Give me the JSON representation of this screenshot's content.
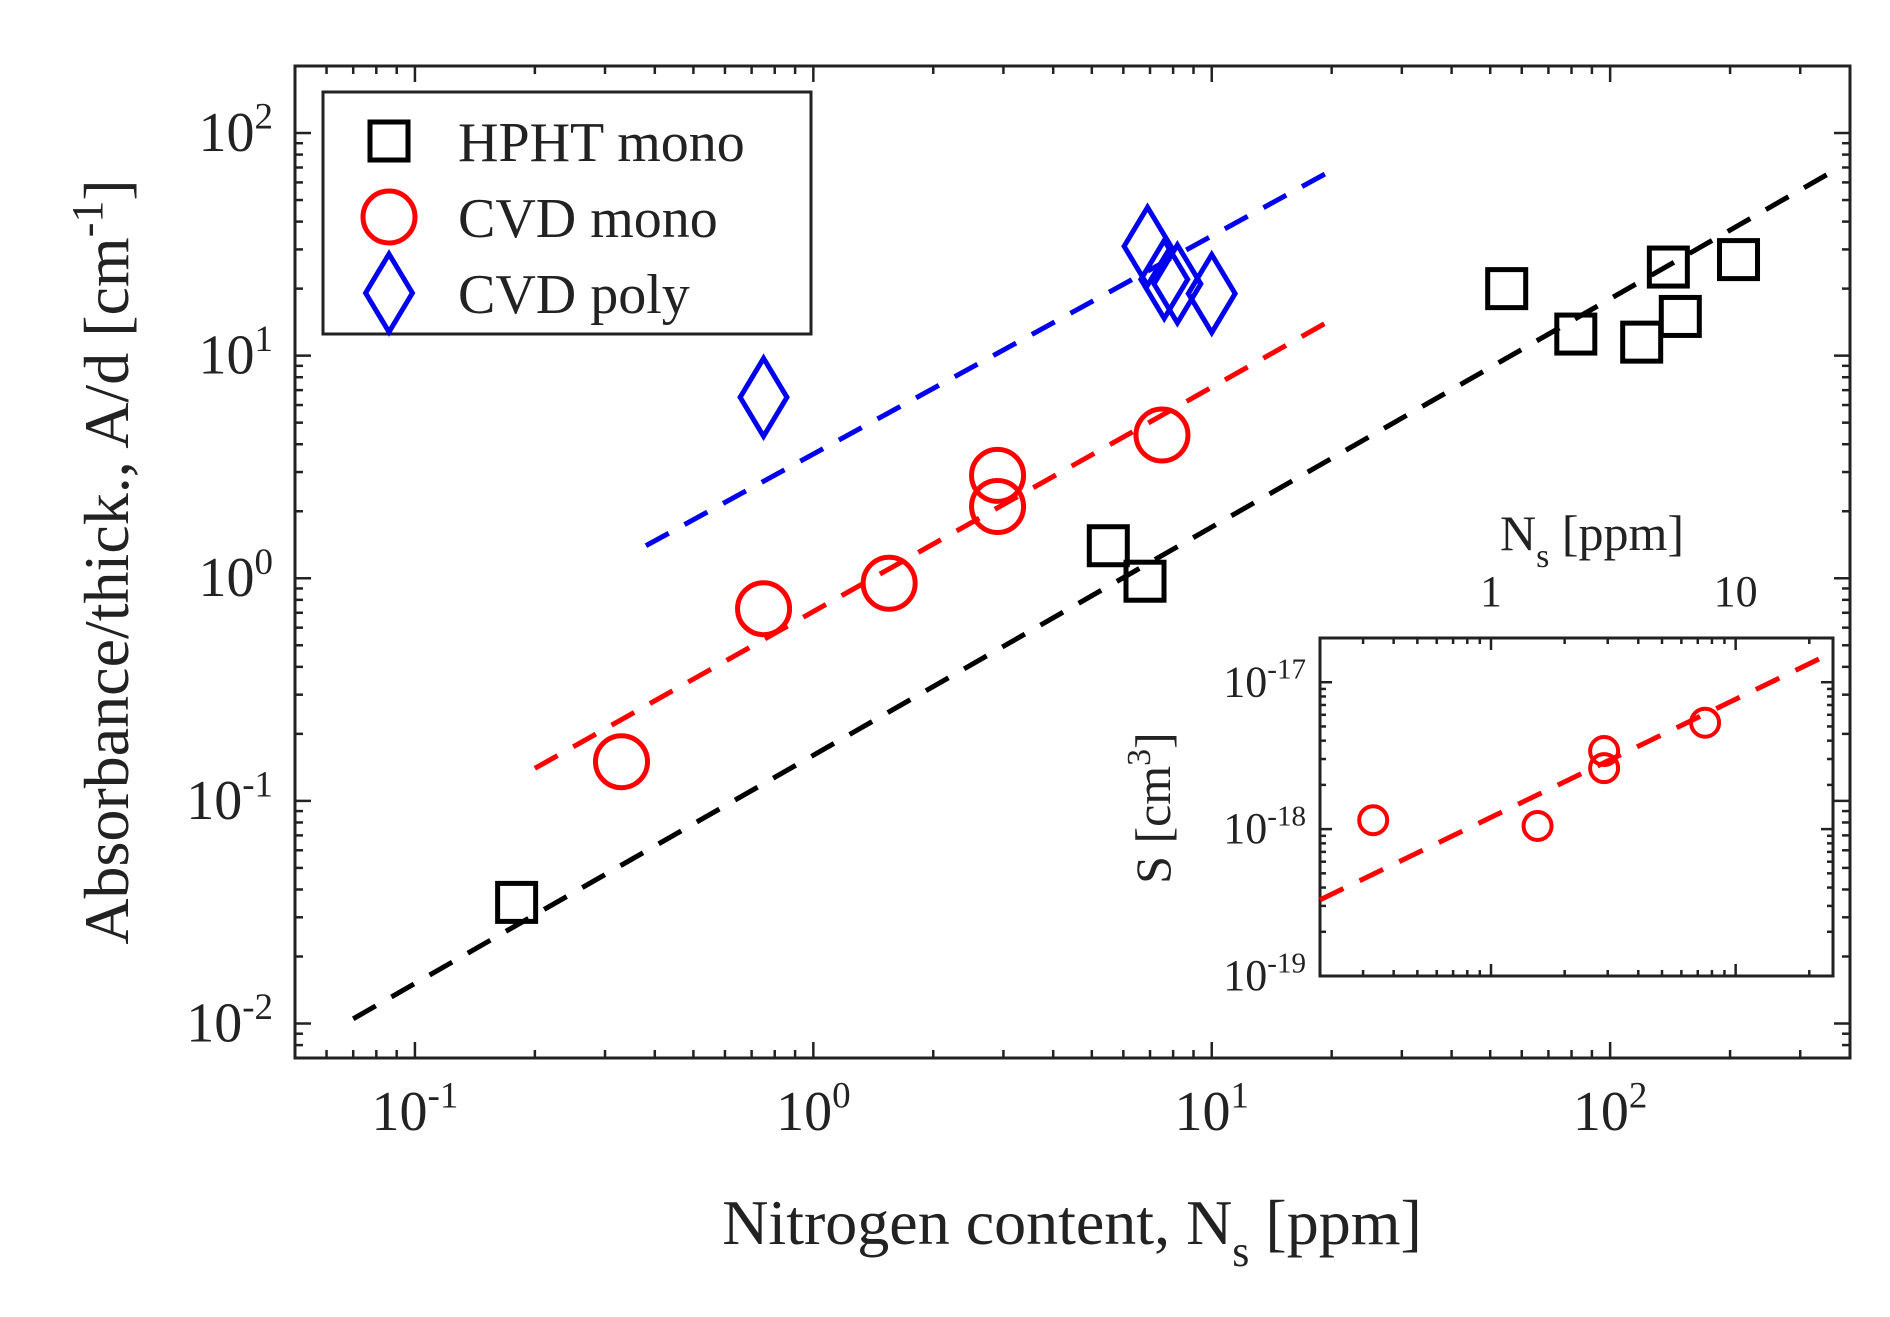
{
  "chart_data": [
    {
      "type": "scatter",
      "xlabel": "Nitrogen content, N",
      "xlabel_sub": "s",
      "xlabel_unit": " [ppm]",
      "ylabel": "Absorbance/thick., A/d [cm",
      "ylabel_sup": "-1",
      "ylabel_end": "]",
      "xscale": "log",
      "yscale": "log",
      "xlim": [
        0.05,
        400
      ],
      "ylim": [
        0.007,
        200
      ],
      "xticks": [
        {
          "value": 0.1,
          "base": "10",
          "exp": "-1"
        },
        {
          "value": 1,
          "base": "10",
          "exp": "0"
        },
        {
          "value": 10,
          "base": "10",
          "exp": "1"
        },
        {
          "value": 100,
          "base": "10",
          "exp": "2"
        }
      ],
      "yticks": [
        {
          "value": 0.01,
          "base": "10",
          "exp": "-2"
        },
        {
          "value": 0.1,
          "base": "10",
          "exp": "-1"
        },
        {
          "value": 1,
          "base": "10",
          "exp": "0"
        },
        {
          "value": 10,
          "base": "10",
          "exp": "1"
        },
        {
          "value": 100,
          "base": "10",
          "exp": "2"
        }
      ],
      "grid": false,
      "legend_position": "top-left",
      "series": [
        {
          "name": "HPHT mono",
          "marker": "square",
          "color": "#000000",
          "points": [
            [
              0.18,
              0.035
            ],
            [
              5.5,
              1.4
            ],
            [
              6.8,
              0.97
            ],
            [
              55,
              20
            ],
            [
              82,
              12.5
            ],
            [
              120,
              11.5
            ],
            [
              140,
              25
            ],
            [
              150,
              15
            ],
            [
              210,
              27
            ]
          ],
          "fit": [
            [
              0.07,
              0.0105
            ],
            [
              350,
              65
            ]
          ]
        },
        {
          "name": "CVD mono",
          "marker": "circle",
          "color": "#ff0000",
          "points": [
            [
              0.33,
              0.15
            ],
            [
              0.75,
              0.73
            ],
            [
              1.55,
              0.95
            ],
            [
              2.9,
              2.9
            ],
            [
              2.9,
              2.1
            ],
            [
              7.5,
              4.4
            ]
          ],
          "fit": [
            [
              0.2,
              0.14
            ],
            [
              20,
              14.5
            ]
          ]
        },
        {
          "name": "CVD poly",
          "marker": "diamond",
          "color": "#0000ee",
          "points": [
            [
              0.75,
              6.5
            ],
            [
              6.9,
              31
            ],
            [
              7.6,
              22
            ],
            [
              8.2,
              21
            ],
            [
              10,
              19
            ]
          ],
          "fit": [
            [
              0.38,
              1.4
            ],
            [
              20,
              68
            ]
          ]
        }
      ]
    },
    {
      "type": "scatter",
      "inset": true,
      "xlabel": "N",
      "xlabel_sub": "s",
      "xlabel_unit": " [ppm]",
      "ylabel": "S [cm",
      "ylabel_sup": "3",
      "ylabel_end": "]",
      "xscale": "log",
      "yscale": "log",
      "xaxis_position": "top",
      "xlim": [
        0.2,
        25
      ],
      "ylim": [
        1e-19,
        2e-17
      ],
      "xticks": [
        {
          "value": 1,
          "label": "1"
        },
        {
          "value": 10,
          "label": "10"
        }
      ],
      "yticks": [
        {
          "value": 1e-19,
          "base": "10",
          "exp": "-19"
        },
        {
          "value": 1e-18,
          "base": "10",
          "exp": "-18"
        },
        {
          "value": 1e-17,
          "base": "10",
          "exp": "-17"
        }
      ],
      "series": [
        {
          "name": "CVD mono",
          "marker": "circle",
          "color": "#ff0000",
          "points": [
            [
              0.33,
              1.15e-18
            ],
            [
              1.55,
              1.05e-18
            ],
            [
              2.9,
              3.4e-18
            ],
            [
              2.9,
              2.6e-18
            ],
            [
              7.5,
              5.3e-18
            ]
          ],
          "fit": [
            [
              0.2,
              3.3e-19
            ],
            [
              25,
              1.6e-17
            ]
          ]
        }
      ]
    }
  ]
}
